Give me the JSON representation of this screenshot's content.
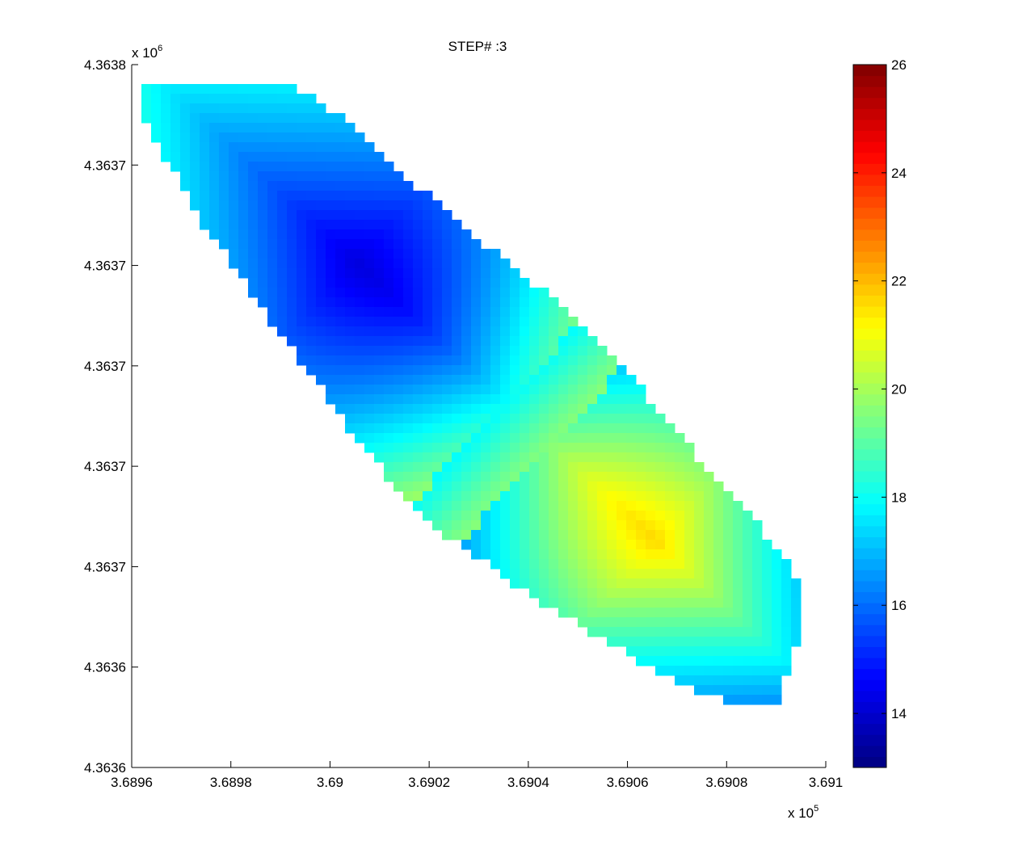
{
  "chart_data": {
    "type": "heatmap",
    "title": "STEP# :3",
    "x_exponent_label": {
      "base": "x 10",
      "exp": "5"
    },
    "y_exponent_label": {
      "base": "x 10",
      "exp": "6"
    },
    "xlim": [
      3.6896,
      3.691
    ],
    "xticks": [
      3.6896,
      3.6898,
      3.69,
      3.6902,
      3.6904,
      3.6906,
      3.6908,
      3.691
    ],
    "xtick_labels": [
      "3.6896",
      "3.6898",
      "3.69",
      "3.6902",
      "3.6904",
      "3.6906",
      "3.6908",
      "3.691"
    ],
    "ytick_labels": [
      "4.3638",
      "4.3637",
      "4.3637",
      "4.3637",
      "4.3637",
      "4.3637",
      "4.3636",
      "4.3636"
    ],
    "colorbar": {
      "range": [
        13,
        26
      ],
      "ticks": [
        14,
        16,
        18,
        20,
        22,
        24,
        26
      ],
      "colormap": "jet"
    },
    "field": {
      "description_values": "estimated temperature-like field, min ~14 (blue core) max ~21.6 (yellow core)",
      "blue_core": {
        "x": 3.69005,
        "y_frac": 0.28,
        "value": 14.2
      },
      "yellow_core": {
        "x": 3.69066,
        "y_frac": 0.68,
        "value": 21.6
      },
      "edge_low_value": 16.8,
      "edge_high_value": 18.3
    }
  }
}
